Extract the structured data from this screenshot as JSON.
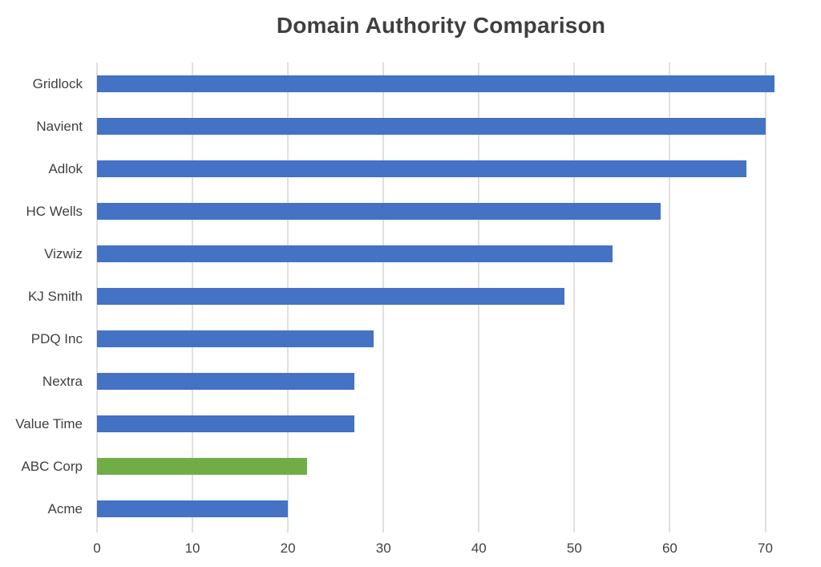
{
  "chart_data": {
    "type": "bar",
    "orientation": "horizontal",
    "title": "Domain Authority Comparison",
    "categories": [
      "Gridlock",
      "Navient",
      "Adlok",
      "HC Wells",
      "Vizwiz",
      "KJ Smith",
      "PDQ Inc",
      "Nextra",
      "Value Time",
      "ABC Corp",
      "Acme"
    ],
    "values": [
      71,
      70,
      68,
      59,
      54,
      49,
      29,
      27,
      27,
      22,
      20
    ],
    "xlabel": "",
    "ylabel": "",
    "xticks": [
      0,
      10,
      20,
      30,
      40,
      50,
      60,
      70
    ],
    "xlim": [
      0,
      75.5
    ],
    "grid": "vertical-only",
    "legend_position": "none",
    "bar_color": "#4472C4",
    "highlight": {
      "category": "ABC Corp",
      "color": "#70AD47"
    }
  },
  "colors": {
    "background": "#FFFFFF",
    "gridline": "#E0E0E0",
    "axis_text": "#404040",
    "title_text": "#3F3F3F"
  }
}
